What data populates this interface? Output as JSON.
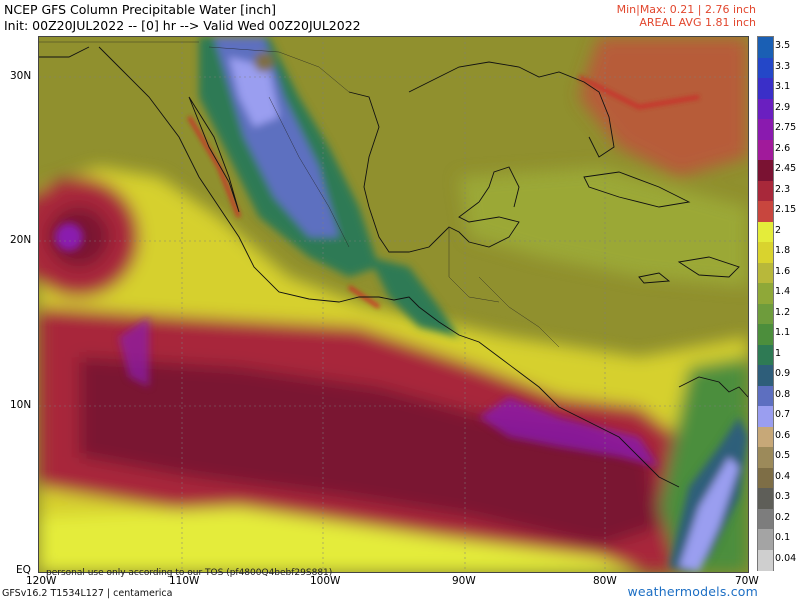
{
  "header": {
    "title": "NCEP GFS Column Precipitable Water [inch]",
    "subtitle": "Init: 00Z20JUL2022 -- [0] hr --> Valid Wed 00Z20JUL2022",
    "minmax": "Min|Max: 0.21 | 2.76 inch",
    "areal_avg": "AREAL AVG 1.81 inch"
  },
  "axes": {
    "lat_labels": [
      "30N",
      "20N",
      "10N",
      "EQ"
    ],
    "lon_labels": [
      "120W",
      "110W",
      "100W",
      "90W",
      "80W",
      "70W"
    ]
  },
  "colorbar": {
    "labels": [
      "3.5",
      "3.3",
      "3.1",
      "2.9",
      "2.75",
      "2.6",
      "2.45",
      "2.3",
      "2.15",
      "2",
      "1.8",
      "1.6",
      "1.4",
      "1.2",
      "1.1",
      "1",
      "0.9",
      "0.8",
      "0.7",
      "0.6",
      "0.5",
      "0.4",
      "0.3",
      "0.2",
      "0.1",
      "0.04"
    ],
    "colors": [
      "#1a5fb4",
      "#2447c8",
      "#3a2fc8",
      "#6a1fc0",
      "#8a1aaf",
      "#a11a9b",
      "#7a1232",
      "#a8283a",
      "#c8463e",
      "#e4ec3a",
      "#d9d32e",
      "#b8b83a",
      "#8fa838",
      "#6e9c3c",
      "#4c8e3c",
      "#2e7a54",
      "#2e5e7a",
      "#5d6fc0",
      "#9a9ef0",
      "#c7a878",
      "#9c8a5a",
      "#7e6e46",
      "#5e5e58",
      "#7d7d7d",
      "#a4a4a4",
      "#cfcfcf"
    ]
  },
  "footer": {
    "model": "GFSv16.2 T1534L127 | centamerica",
    "disclaimer": "personal use only according to our TOS (pf4800Q4bebf29S881)",
    "watermark": "weathermodels.com"
  }
}
